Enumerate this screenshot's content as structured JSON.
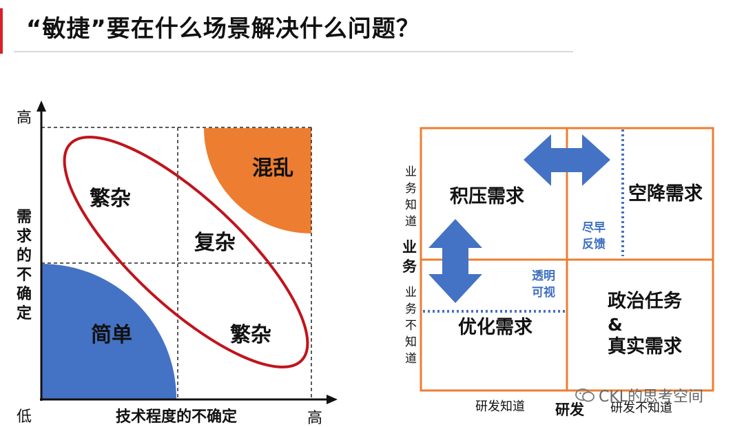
{
  "title": "“敏捷”要在什么场景解决什么问题？",
  "colors": {
    "accent": "#d9202a",
    "orange": "#ed7d31",
    "blue": "#4472c4",
    "red_ellipse": "#c0141c",
    "grid_line": "#222222",
    "dotted_blue": "#4472c4"
  },
  "left_diagram": {
    "y_high": "高",
    "y_low": "低",
    "x_high": "高",
    "y_axis_label": [
      "需",
      "求",
      "的",
      "不",
      "确",
      "定"
    ],
    "x_axis_label": "技术程度的不确定",
    "quadrants": {
      "top_left": "繁杂",
      "top_right": "混乱",
      "center": "复杂",
      "bottom_left": "简单",
      "bottom_right": "繁杂"
    }
  },
  "right_diagram": {
    "y_top_small": [
      "业",
      "务",
      "知",
      "道"
    ],
    "y_main": [
      "业",
      "务"
    ],
    "y_bottom_small": [
      "业",
      "务",
      "不",
      "知",
      "道"
    ],
    "x_left_small": "研发知道",
    "x_main": "研发",
    "x_right_small": "研发不知道",
    "quadrants": {
      "top_left": "积压需求",
      "top_right": "空降需求",
      "bottom_left": "优化需求",
      "bottom_right_line1": "政治任务",
      "bottom_right_line2": "&",
      "bottom_right_line3": "真实需求"
    },
    "notes": {
      "early_feedback_1": "尽早",
      "early_feedback_2": "反馈",
      "transparent_1": "透明",
      "transparent_2": "可视"
    }
  },
  "watermark": "CKL的思考空间"
}
